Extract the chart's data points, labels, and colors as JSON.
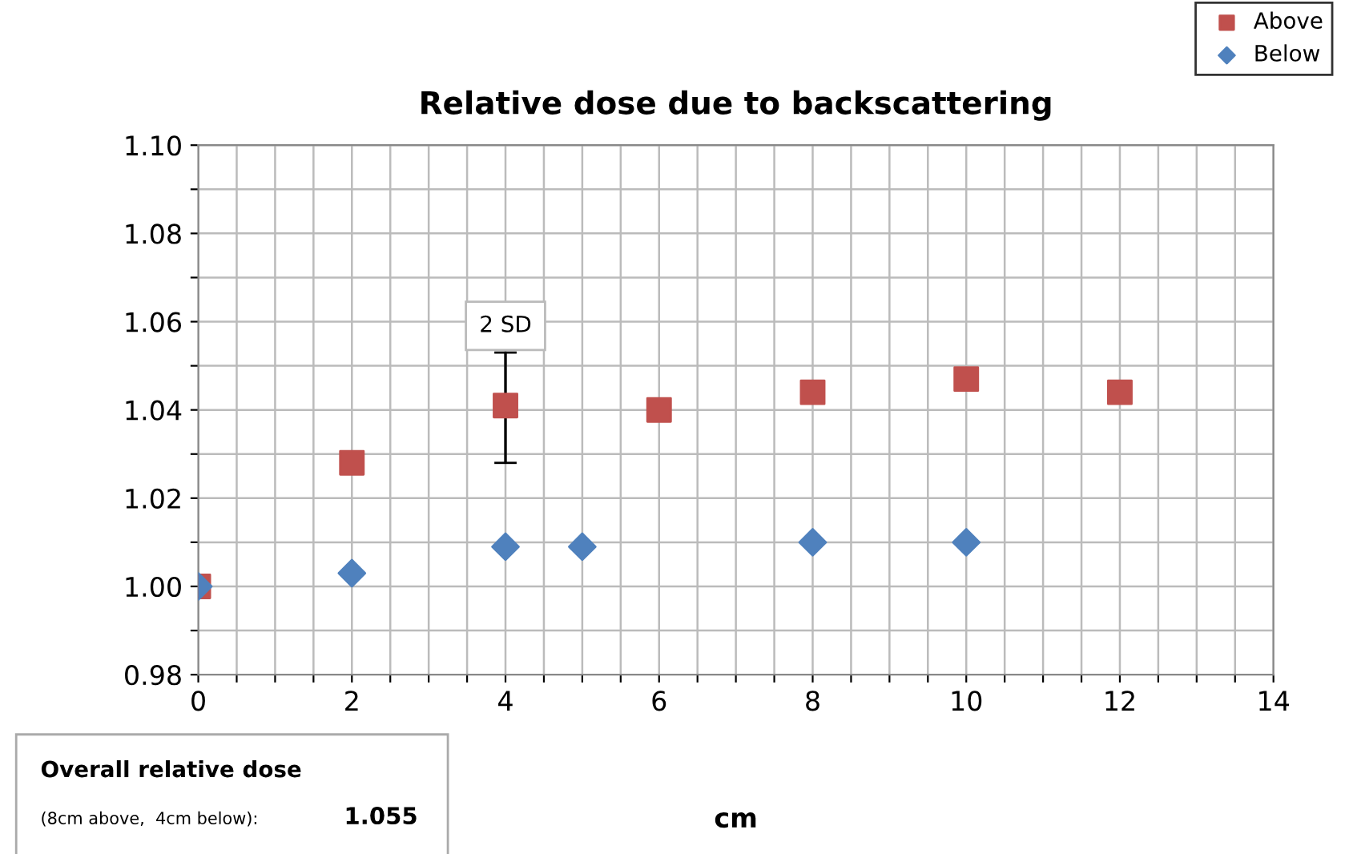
{
  "chart_data": {
    "type": "scatter",
    "title": "Relative dose due to backscattering",
    "xlabel": "cm",
    "series": [
      {
        "name": "Above",
        "color": "#c0504d",
        "marker": "square",
        "x": [
          0,
          2,
          4,
          6,
          8,
          10,
          12
        ],
        "values": [
          1.0,
          1.028,
          1.041,
          1.04,
          1.044,
          1.047,
          1.044
        ],
        "errors": [
          null,
          null,
          [
            1.028,
            1.053
          ],
          null,
          null,
          null,
          null
        ]
      },
      {
        "name": "Below",
        "color": "#4f81bd",
        "marker": "diamond",
        "x": [
          0,
          2,
          4,
          5,
          8,
          10
        ],
        "values": [
          1.0,
          1.003,
          1.009,
          1.009,
          1.01,
          1.01
        ]
      }
    ],
    "xlim": [
      0,
      14
    ],
    "ylim": [
      0.98,
      1.1
    ],
    "xticks": [
      0,
      {
        "value": 0.5,
        "label": null
      },
      {
        "value": 1,
        "label": null
      },
      {
        "value": 1.5,
        "label": null
      },
      2,
      {
        "value": 2.5,
        "label": null
      },
      {
        "value": 3,
        "label": null
      },
      {
        "value": 3.5,
        "label": null
      },
      4,
      {
        "value": 4.5,
        "label": null
      },
      {
        "value": 5,
        "label": null
      },
      {
        "value": 5.5,
        "label": null
      },
      6,
      {
        "value": 6.5,
        "label": null
      },
      {
        "value": 7,
        "label": null
      },
      {
        "value": 7.5,
        "label": null
      },
      8,
      {
        "value": 8.5,
        "label": null
      },
      {
        "value": 9,
        "label": null
      },
      {
        "value": 9.5,
        "label": null
      },
      10,
      {
        "value": 10.5,
        "label": null
      },
      {
        "value": 11,
        "label": null
      },
      {
        "value": 11.5,
        "label": null
      },
      12,
      {
        "value": 12.5,
        "label": null
      },
      {
        "value": 13,
        "label": null
      },
      {
        "value": 13.5,
        "label": null
      },
      14
    ],
    "yticks": [
      {
        "value": 0.98,
        "label": "0.98"
      },
      {
        "value": 0.99,
        "label": null
      },
      {
        "value": 1.0,
        "label": "1.00"
      },
      {
        "value": 1.01,
        "label": null
      },
      {
        "value": 1.02,
        "label": "1.02"
      },
      {
        "value": 1.03,
        "label": null
      },
      {
        "value": 1.04,
        "label": "1.04"
      },
      {
        "value": 1.05,
        "label": null
      },
      {
        "value": 1.06,
        "label": "1.06"
      },
      {
        "value": 1.07,
        "label": null
      },
      {
        "value": 1.08,
        "label": "1.08"
      },
      {
        "value": 1.09,
        "label": null
      },
      {
        "value": 1.1,
        "label": "1.10"
      }
    ],
    "grid": true,
    "legend": "top right",
    "annotations": [
      {
        "text": "2 SD",
        "x": 4,
        "y": 1.053
      },
      "Overall relative dose",
      "(8cm above,  4cm below):",
      "1.055"
    ]
  }
}
